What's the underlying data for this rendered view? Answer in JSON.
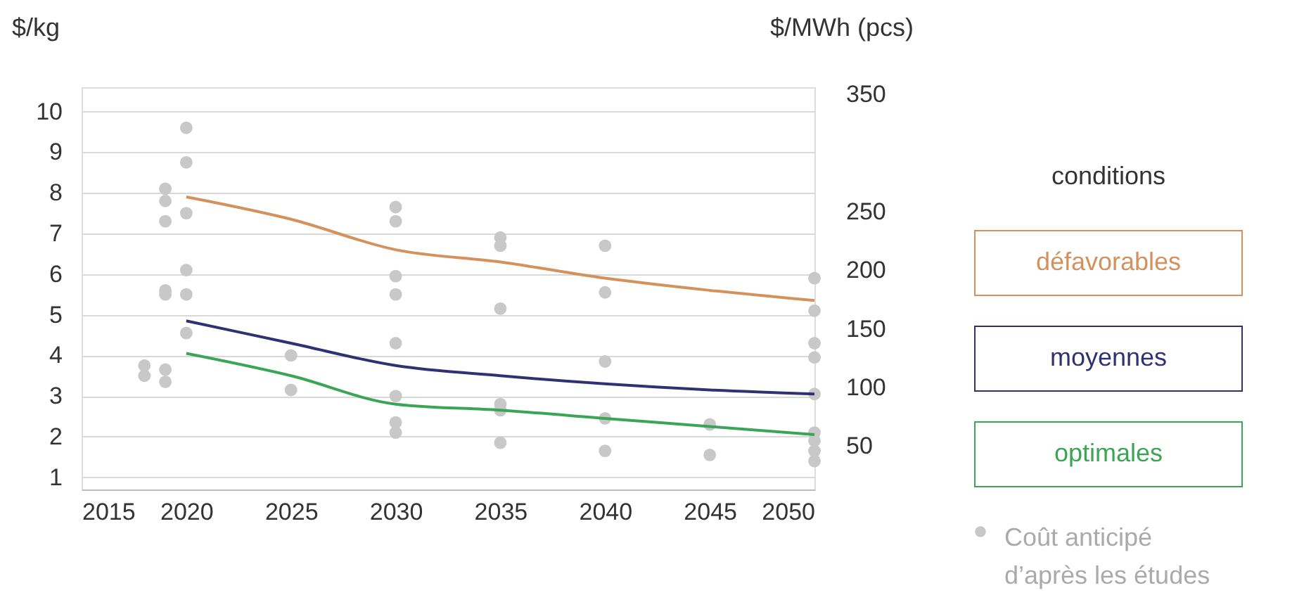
{
  "chart_data": {
    "type": "line",
    "ylabel": "$/kg",
    "y2label": "$/MWh (pcs)",
    "legend_title": "conditions",
    "xlim": [
      2015,
      2050
    ],
    "xticks": [
      2015,
      2020,
      2025,
      2030,
      2035,
      2040,
      2045,
      2050
    ],
    "ylim": [
      0.7,
      10.6
    ],
    "yticks": [
      1,
      2,
      3,
      4,
      5,
      6,
      7,
      8,
      9,
      10
    ],
    "y2lim": [
      13,
      356
    ],
    "y2ticks": [
      50,
      100,
      150,
      200,
      250,
      350
    ],
    "grid": "y",
    "legend": "right",
    "series": [
      {
        "name": "défavorables",
        "color": "#d4915c",
        "x": [
          2020,
          2025,
          2030,
          2035,
          2040,
          2045,
          2050
        ],
        "values": [
          7.9,
          7.35,
          6.6,
          6.3,
          5.9,
          5.6,
          5.35
        ]
      },
      {
        "name": "moyennes",
        "color": "#2f3272",
        "x": [
          2020,
          2025,
          2030,
          2035,
          2040,
          2045,
          2050
        ],
        "values": [
          4.85,
          4.3,
          3.75,
          3.5,
          3.3,
          3.15,
          3.05
        ]
      },
      {
        "name": "optimales",
        "color": "#3aa655",
        "x": [
          2020,
          2025,
          2030,
          2035,
          2040,
          2045,
          2050
        ],
        "values": [
          4.05,
          3.5,
          2.8,
          2.65,
          2.45,
          2.25,
          2.05
        ]
      },
      {
        "name": "Coût anticipé\nd’après les études",
        "type": "scatter",
        "color": "#c8c8c8",
        "x": [
          2018,
          2018,
          2019,
          2019,
          2019,
          2019,
          2019,
          2019,
          2019,
          2020,
          2020,
          2020,
          2020,
          2020,
          2020,
          2025,
          2025,
          2030,
          2030,
          2030,
          2030,
          2030,
          2030,
          2030,
          2030,
          2035,
          2035,
          2035,
          2035,
          2035,
          2035,
          2040,
          2040,
          2040,
          2040,
          2040,
          2045,
          2045,
          2050,
          2050,
          2050,
          2050,
          2050,
          2050,
          2050,
          2050,
          2050
        ],
        "values": [
          3.75,
          3.5,
          8.1,
          7.8,
          7.3,
          5.6,
          5.5,
          3.65,
          3.35,
          9.6,
          8.75,
          7.5,
          6.1,
          5.5,
          4.55,
          4.0,
          3.15,
          7.65,
          7.3,
          5.95,
          5.5,
          4.3,
          3.0,
          2.35,
          2.1,
          6.9,
          6.7,
          5.15,
          2.8,
          2.65,
          1.85,
          6.7,
          5.55,
          3.85,
          2.45,
          1.65,
          2.3,
          1.55,
          5.9,
          5.1,
          4.3,
          3.95,
          3.05,
          2.1,
          1.9,
          1.65,
          1.4
        ]
      }
    ]
  }
}
